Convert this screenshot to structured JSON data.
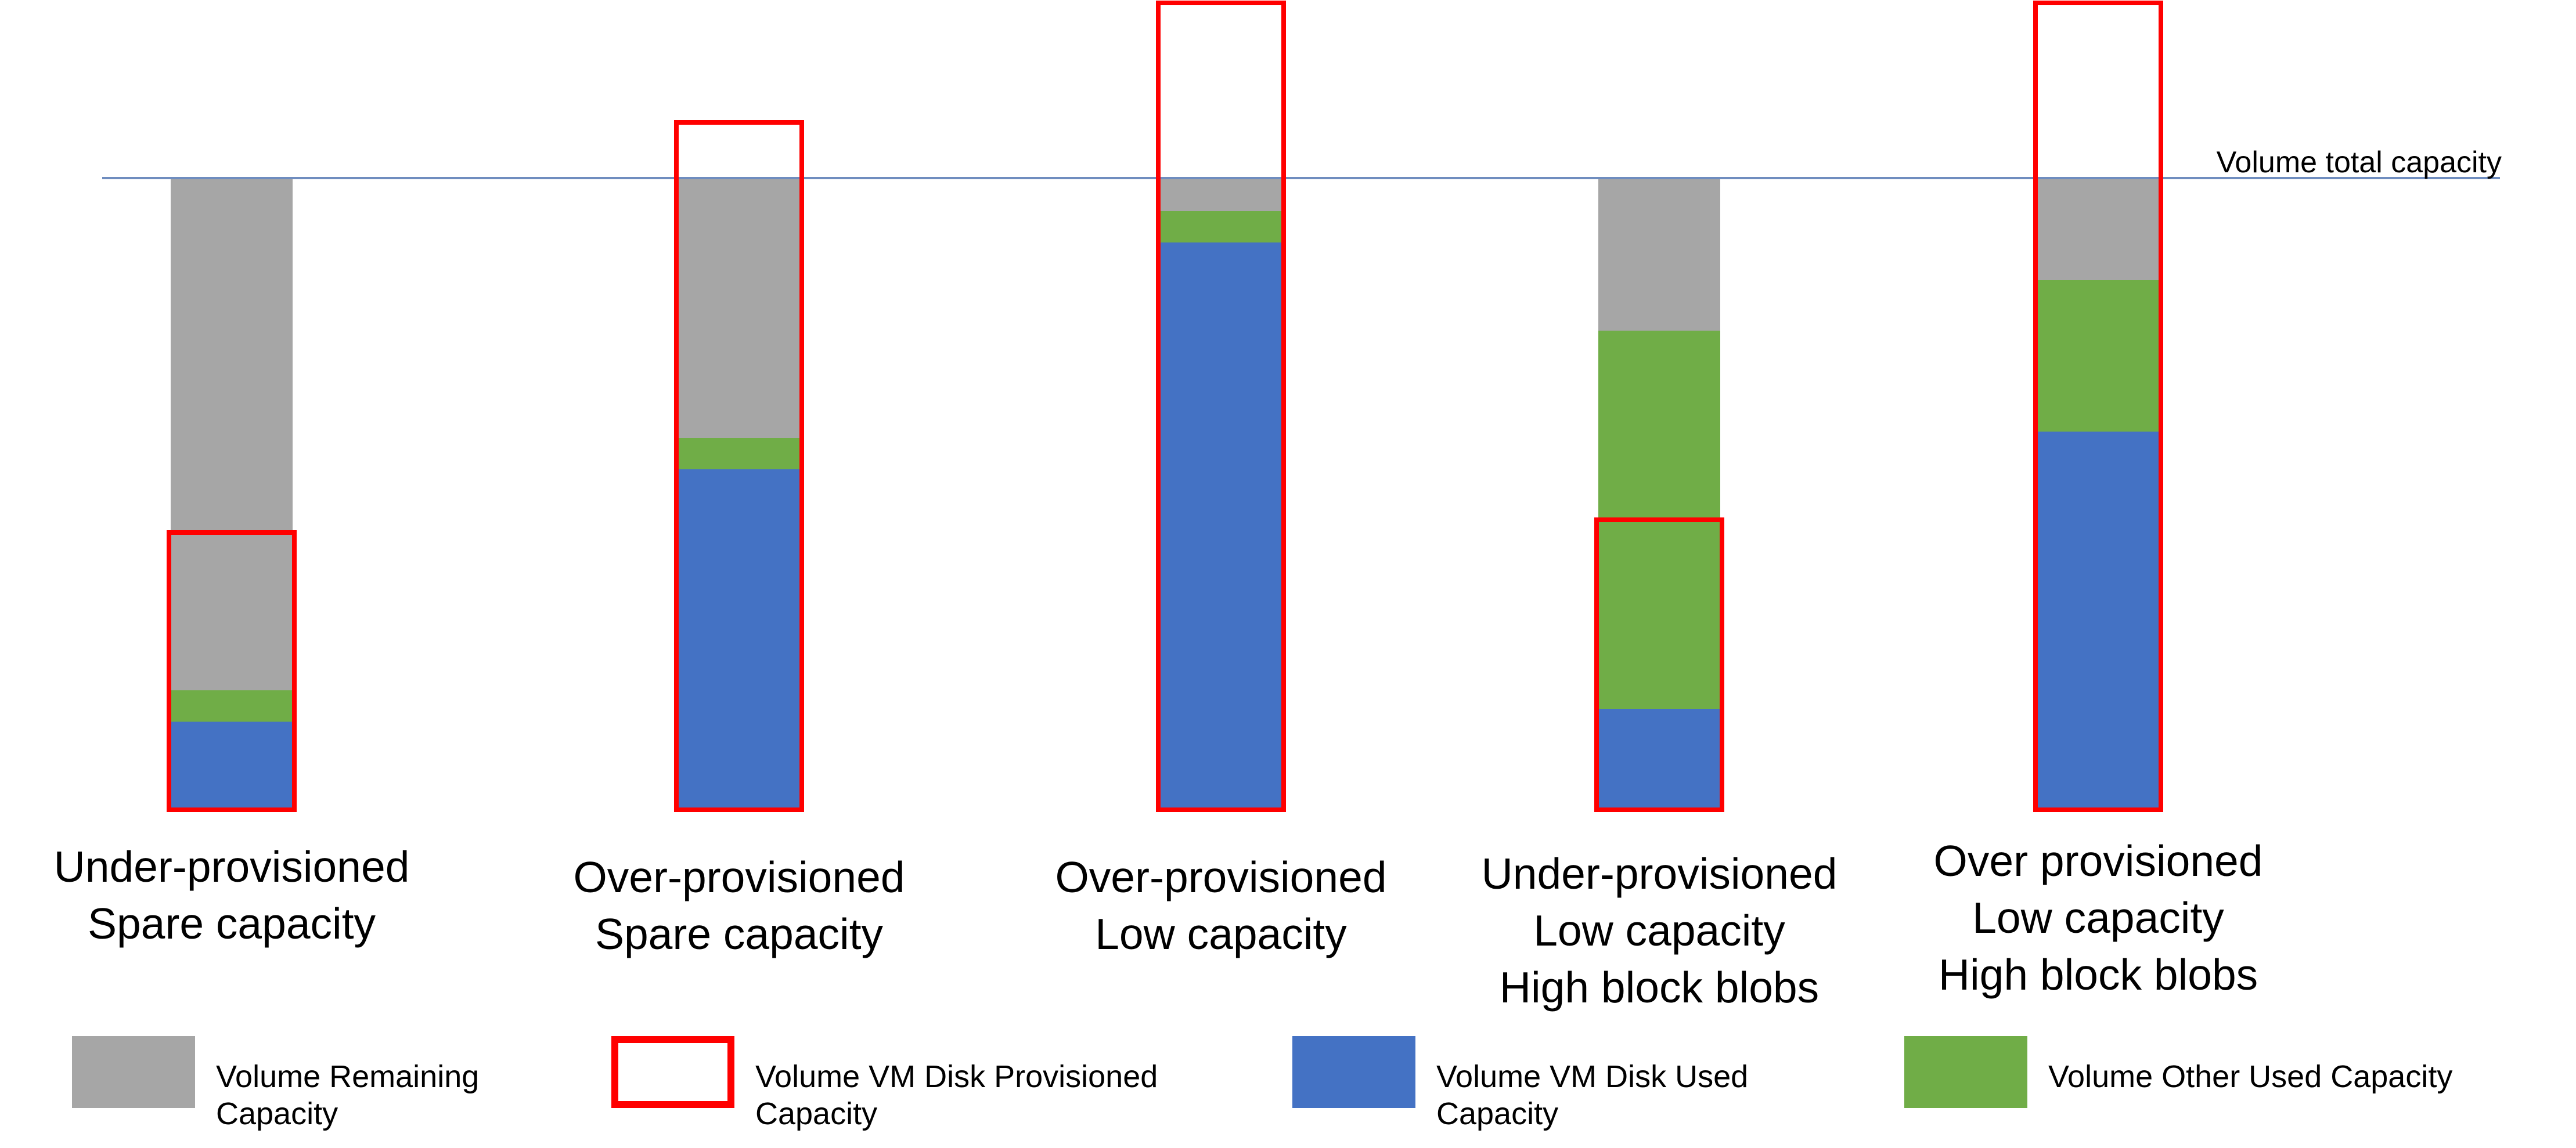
{
  "reference_line": {
    "label": "Volume total capacity",
    "value_pct": 100,
    "color": "#6F8DBF"
  },
  "chart_data": {
    "type": "bar",
    "subtype": "stacked-column-with-outline-overlay",
    "title": "",
    "unit": "% of volume total capacity",
    "ylim": [
      0,
      130
    ],
    "grid": false,
    "legend_position": "bottom",
    "reference_line": {
      "label": "Volume total capacity",
      "value": 100
    },
    "categories": [
      "Under-provisioned Spare capacity",
      "Over-provisioned Spare capacity",
      "Over-provisioned Low capacity",
      "Under-provisioned Low capacity High block blobs",
      "Over provisioned Low capacity High block blobs"
    ],
    "category_label_lines": [
      [
        "Under-provisioned",
        "Spare capacity"
      ],
      [
        "Over-provisioned",
        "Spare capacity"
      ],
      [
        "Over-provisioned",
        "Low capacity"
      ],
      [
        "Under-provisioned",
        "Low capacity",
        "High block blobs"
      ],
      [
        "Over provisioned",
        "Low capacity",
        "High block blobs"
      ]
    ],
    "series": [
      {
        "name": "Volume VM Disk Used Capacity",
        "color": "#4472C4",
        "render": "fill",
        "values": [
          14,
          54,
          90,
          16,
          60
        ]
      },
      {
        "name": "Volume Other Used Capacity",
        "color": "#70AD47",
        "render": "fill",
        "values": [
          5,
          5,
          5,
          60,
          24
        ]
      },
      {
        "name": "Volume Remaining Capacity",
        "color": "#A6A6A6",
        "render": "fill",
        "values": [
          81,
          41,
          5,
          24,
          16
        ]
      },
      {
        "name": "Volume VM Disk Provisioned Capacity",
        "color": "#FF0000",
        "render": "outline",
        "values": [
          44,
          109,
          128,
          46,
          128
        ]
      }
    ]
  },
  "legend": {
    "items": [
      {
        "id": "remaining",
        "label": "Volume Remaining\nCapacity",
        "swatch": "fill",
        "color": "#A6A6A6"
      },
      {
        "id": "provisioned",
        "label": "Volume VM Disk Provisioned\nCapacity",
        "swatch": "outline",
        "color": "#FF0000"
      },
      {
        "id": "vm-used",
        "label": "Volume VM Disk Used\nCapacity",
        "swatch": "fill",
        "color": "#4472C4"
      },
      {
        "id": "other-used",
        "label": "Volume Other Used Capacity",
        "swatch": "fill",
        "color": "#70AD47"
      }
    ]
  }
}
